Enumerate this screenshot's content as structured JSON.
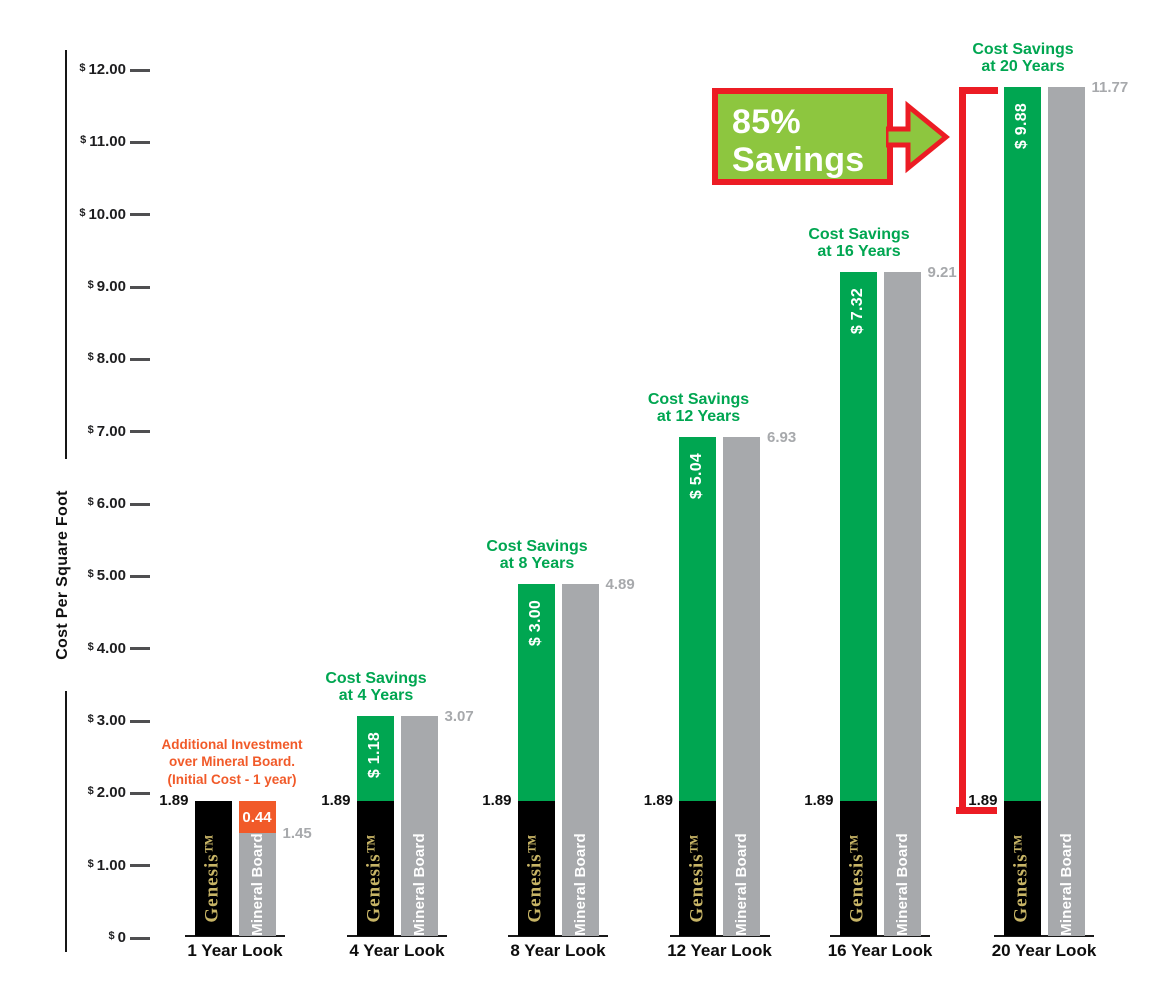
{
  "colors": {
    "green": "#00A651",
    "light_green": "#8DC63F",
    "red": "#EC1C24",
    "orange": "#F15A29",
    "gray": "#A7A9AC",
    "black": "#000000",
    "gold": "#C8B566",
    "text": "#111111"
  },
  "chart_data": {
    "type": "bar",
    "title": "",
    "xlabel": "",
    "ylabel": "Cost Per Square Foot",
    "ylim": [
      0,
      12
    ],
    "grid": false,
    "legend_position": "none",
    "ytick_labels": [
      "$ 0",
      "$ 1.00",
      "$ 2.00",
      "$ 3.00",
      "$ 4.00",
      "$ 5.00",
      "$ 6.00",
      "$ 7.00",
      "$ 8.00",
      "$ 9.00",
      "$ 10.00",
      "$ 11.00",
      "$ 12.00"
    ],
    "categories": [
      "1 Year Look",
      "4 Year Look",
      "8 Year Look",
      "12 Year Look",
      "16 Year Look",
      "20 Year Look"
    ],
    "series": [
      {
        "name": "Genesis™",
        "bar_color": "#000000",
        "label_color": "#C8B566",
        "initial_cost": 1.89,
        "initial_cost_label": "1.89",
        "savings_segments": [
          null,
          1.18,
          3.0,
          5.04,
          7.32,
          9.88
        ],
        "savings_segment_labels": [
          null,
          "$ 1.18",
          "$ 3.00",
          "$ 5.04",
          "$ 7.32",
          "$ 9.88"
        ],
        "totals": [
          1.89,
          3.07,
          4.89,
          6.93,
          9.21,
          11.77
        ]
      },
      {
        "name": "Mineral Board",
        "bar_color": "#A7A9AC",
        "values": [
          1.45,
          3.07,
          4.89,
          6.93,
          9.21,
          11.77
        ],
        "value_labels": [
          "1.45",
          "3.07",
          "4.89",
          "6.93",
          "9.21",
          "11.77"
        ],
        "extra_segment": {
          "index": 0,
          "value": 0.44,
          "label": "0.44",
          "color": "#F15A29"
        }
      }
    ],
    "group_annotations": [
      {
        "lines": [
          "Additional Investment",
          "over Mineral Board.",
          "(Initial Cost - 1 year)"
        ],
        "color": "#F15A29"
      },
      {
        "lines": [
          "Cost Savings",
          "at 4 Years"
        ],
        "color": "#00A651"
      },
      {
        "lines": [
          "Cost Savings",
          "at 8 Years"
        ],
        "color": "#00A651"
      },
      {
        "lines": [
          "Cost Savings",
          "at 12 Years"
        ],
        "color": "#00A651"
      },
      {
        "lines": [
          "Cost Savings",
          "at 16 Years"
        ],
        "color": "#00A651"
      },
      {
        "lines": [
          "Cost Savings",
          "at 20 Years"
        ],
        "color": "#00A651"
      }
    ],
    "callout": {
      "line1": "85%",
      "line2": "Savings",
      "fill": "#8DC63F",
      "border": "#EC1C24",
      "text_color": "#FFFFFF",
      "points_to": "20 Year Look"
    }
  }
}
